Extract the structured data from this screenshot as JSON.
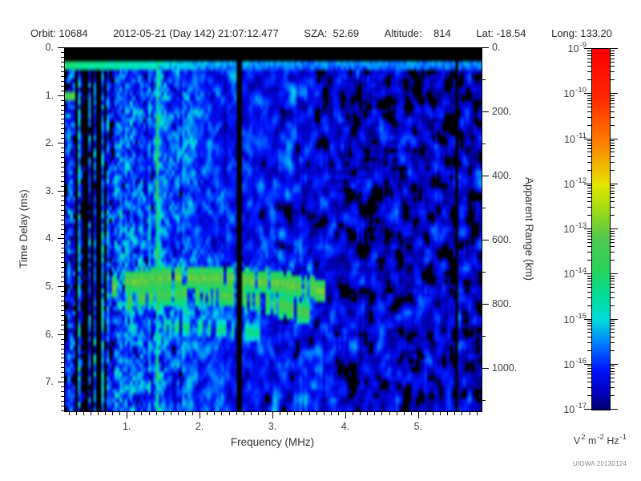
{
  "header": {
    "segments": [
      "Orbit: 10684",
      "2012-05-21 (Day 142) 21:07:12.477",
      "SZA:  52.69",
      "Altitude:    814",
      "Lat: -18.54",
      "Long: 133.20"
    ],
    "fields": {
      "orbit": "10684",
      "date": "2012-05-21",
      "day": "142",
      "time": "21:07:12.477",
      "sza": "52.69",
      "altitude": "814",
      "lat": "-18.54",
      "long": "133.20"
    }
  },
  "credit": "UIOWA 20130124",
  "chart_data": {
    "type": "heatmap",
    "subtype": "ionospheric-sounder-ionogram",
    "xlabel": "Frequency (MHz)",
    "ylabel_left": "Time Delay (ms)",
    "ylabel_right": "Apparent Range (km)",
    "x_range": [
      0.14,
      5.86
    ],
    "y_range": [
      0,
      7.6
    ],
    "right_range": [
      0,
      1133
    ],
    "x_ticks": [
      {
        "v": 1,
        "t": "1."
      },
      {
        "v": 2,
        "t": "2."
      },
      {
        "v": 3,
        "t": "3."
      },
      {
        "v": 4,
        "t": "4."
      },
      {
        "v": 5,
        "t": "5."
      }
    ],
    "y_ticks": [
      {
        "v": 0,
        "t": "0."
      },
      {
        "v": 1,
        "t": "1."
      },
      {
        "v": 2,
        "t": "2."
      },
      {
        "v": 3,
        "t": "3."
      },
      {
        "v": 4,
        "t": "4."
      },
      {
        "v": 5,
        "t": "5."
      },
      {
        "v": 6,
        "t": "6."
      },
      {
        "v": 7,
        "t": "7."
      }
    ],
    "range_ticks": [
      {
        "v": 0,
        "t": "0."
      },
      {
        "v": 200,
        "t": "200."
      },
      {
        "v": 400,
        "t": "400."
      },
      {
        "v": 600,
        "t": "600."
      },
      {
        "v": 800,
        "t": "800."
      },
      {
        "v": 1000,
        "t": "1000."
      }
    ],
    "x_minor_step": 0.1,
    "y_minor_step": 0.1,
    "range_minor_step": 100,
    "colorbar": {
      "scale": "log",
      "min": "1e-17",
      "max": "1e-9",
      "exponents": [
        "-9",
        "-10",
        "-11",
        "-12",
        "-13",
        "-14",
        "-15",
        "-16",
        "-17"
      ],
      "unit_parts": [
        [
          "V",
          "2"
        ],
        [
          " m",
          "-2"
        ],
        [
          " Hz",
          "-1"
        ]
      ]
    },
    "echo_traces": [
      {
        "name": "ionosphere-echo-1",
        "level": -12.9,
        "half_width_ms": 0.1,
        "gap_prob": 0.12,
        "points": [
          [
            0.78,
            5.0
          ],
          [
            0.95,
            4.9
          ],
          [
            1.2,
            4.85
          ],
          [
            1.6,
            4.82
          ],
          [
            2.1,
            4.82
          ],
          [
            2.55,
            4.84
          ],
          [
            2.9,
            4.88
          ],
          [
            3.2,
            4.95
          ],
          [
            3.5,
            5.02
          ],
          [
            3.72,
            5.1
          ]
        ]
      },
      {
        "name": "ionosphere-echo-2",
        "level": -13.2,
        "half_width_ms": 0.1,
        "gap_prob": 0.25,
        "points": [
          [
            1.0,
            5.3
          ],
          [
            1.3,
            5.18
          ],
          [
            1.7,
            5.14
          ],
          [
            2.2,
            5.16
          ],
          [
            2.6,
            5.22
          ],
          [
            2.95,
            5.32
          ],
          [
            3.25,
            5.45
          ],
          [
            3.5,
            5.58
          ]
        ]
      },
      {
        "name": "ionosphere-echo-3",
        "level": -14.1,
        "half_width_ms": 0.09,
        "gap_prob": 0.45,
        "points": [
          [
            1.5,
            5.82
          ],
          [
            2.0,
            5.85
          ],
          [
            2.5,
            5.9
          ],
          [
            2.85,
            5.97
          ]
        ]
      }
    ],
    "render": {
      "seed": 1337,
      "grid": [
        160,
        83
      ],
      "black_below": -16.99,
      "top_band_end_ms": 0.235,
      "surface_rows_ms": [
        0.25,
        0.42
      ],
      "surface_profile": [
        [
          0.14,
          -13.9
        ],
        [
          0.8,
          -14.3
        ],
        [
          1.6,
          -14.9
        ],
        [
          2.2,
          -15.2
        ],
        [
          3.5,
          -15.35
        ],
        [
          5.86,
          -15.3
        ]
      ],
      "base_profile": [
        [
          0.14,
          -16.0
        ],
        [
          0.45,
          -16.25
        ],
        [
          0.8,
          -15.85
        ],
        [
          1.9,
          -15.9
        ],
        [
          2.45,
          -16.1
        ],
        [
          3.3,
          -16.25
        ],
        [
          4.2,
          -16.55
        ],
        [
          5.0,
          -16.6
        ],
        [
          5.86,
          -16.5
        ]
      ],
      "stripe_amp_profile": [
        [
          0.14,
          1.15
        ],
        [
          0.8,
          0.75
        ],
        [
          2.0,
          0.35
        ],
        [
          2.6,
          0.18
        ],
        [
          5.86,
          0.15
        ]
      ],
      "smooth_profile": [
        [
          0.14,
          0.15
        ],
        [
          1.0,
          0.3
        ],
        [
          2.0,
          0.55
        ],
        [
          2.8,
          0.8
        ],
        [
          4.0,
          0.9
        ],
        [
          5.86,
          0.9
        ]
      ],
      "sigma_profile": [
        [
          0.14,
          0.75
        ],
        [
          1.0,
          0.7
        ],
        [
          2.5,
          0.6
        ],
        [
          4.0,
          0.7
        ],
        [
          5.86,
          0.75
        ]
      ],
      "dark_stripe_cluster_mhz": [
        0.24,
        0.7
      ],
      "bright_columns": [
        {
          "f": 1.41,
          "boost": 1.5
        },
        {
          "f": 0.2,
          "boost": 0.7
        }
      ],
      "dark_columns": [
        {
          "f": 2.5,
          "w": 2
        },
        {
          "f": 5.52,
          "w": 1
        }
      ],
      "noise_blob": {
        "f": 0.19,
        "d": 1.04,
        "level": -13.35
      },
      "cloud": {
        "f": [
          0.78,
          3.55
        ],
        "d_center": 5.1,
        "d_halfspan": 1.15
      },
      "colormap": [
        [
          -17.05,
          "#000060"
        ],
        [
          -16.6,
          "#0000C0"
        ],
        [
          -16.1,
          "#0014FF"
        ],
        [
          -15.55,
          "#0078FF"
        ],
        [
          -15.0,
          "#00DCDC"
        ],
        [
          -14.45,
          "#00DC96"
        ],
        [
          -13.9,
          "#28D25A"
        ],
        [
          -13.2,
          "#50C850"
        ],
        [
          -12.55,
          "#A0DC14"
        ],
        [
          -12.0,
          "#E6E600"
        ],
        [
          -11.0,
          "#FF7800"
        ],
        [
          -10.0,
          "#FF2300"
        ],
        [
          -9.0,
          "#FF0000"
        ]
      ]
    }
  }
}
